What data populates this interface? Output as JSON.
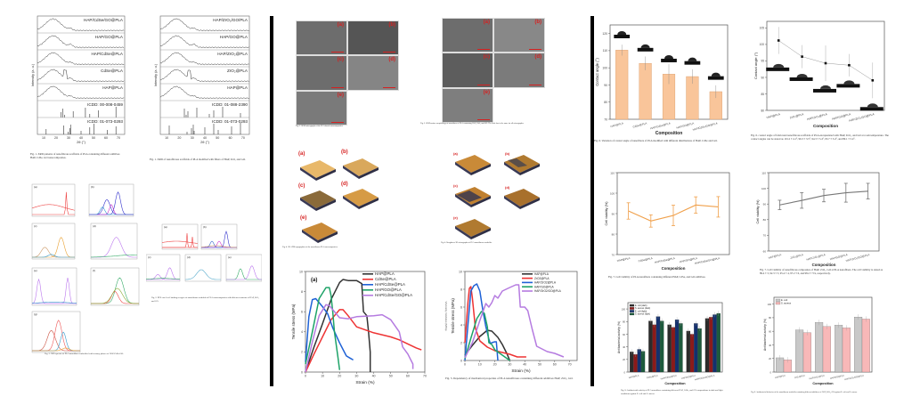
{
  "xrd": [
    {
      "traces": [
        "HAP/CdSe/GO@PLA",
        "HAP/GO@PLA",
        "HAP/CdSe@PLA",
        "CdSe@PLA",
        "HAP@PLA"
      ],
      "refs": [
        "ICDD: 00-008-0459",
        "ICDD: 01-073-0293"
      ],
      "ylabel": "Intensity (a. u.)",
      "xlabel": "2θ (°)",
      "xticks": [
        "10",
        "20",
        "30",
        "40",
        "50",
        "60",
        "70"
      ],
      "caption": "Fig. 1. XRD patterns of nanofibrous scaffolds of PLA containing different additives HAP, CdSe, GO nanocomposites."
    },
    {
      "traces": [
        "HAP/ZrO₂/GO/PLA",
        "HAP/GO@PLA",
        "HAP/ZrO₂@PLA",
        "ZrO₂@PLA",
        "HAP@PLA"
      ],
      "refs": [
        "ICDD: 01-088-2390",
        "ICDD: 01-073-0293"
      ],
      "ylabel": "Intensity (a. u.)",
      "xlabel": "2θ (°)",
      "xticks": [
        "10",
        "20",
        "30",
        "40",
        "50",
        "60",
        "70"
      ],
      "caption": "Fig. 1. XRD of nanofibrous scaffolds of PLA modified with fillers of HAP, ZrO₂ and GO."
    }
  ],
  "xps_left": {
    "panels": [
      "(a)",
      "(b)",
      "(c)",
      "(d)",
      "(e)",
      "(f)",
      "(g)"
    ],
    "caption": "Fig. 2. XPS spectra of PLA nanofibers embedded with ternary phases of HAP/CdSe/GO."
  },
  "xps_right": {
    "panels": [
      "(a)",
      "(b)",
      "(c)",
      "(d)",
      "(e)"
    ],
    "caption": "Fig. 2. XPS core level binding energies of nanofibrous scaffolds of PLA nanocomposites with different contents of HAP, ZrO₂ and GO."
  },
  "sem_left": {
    "labels": [
      "(a)",
      "(b)",
      "(c)",
      "(d)",
      "(e)"
    ],
    "caption": "Fig. 3. SEM micrographs of the PLA-based nanocomposites."
  },
  "sem_right": {
    "labels": [
      "(a)",
      "(b)",
      "(c)",
      "(d)",
      "(e)"
    ],
    "caption": "Fig. 3. SEM surface morphology of nanofibers of PLA containing HAP, ZrO₂ and GO. The scale bar is the same for all micrographs."
  },
  "afm_left": {
    "labels": [
      "(a)",
      "(b)",
      "(c)",
      "(d)",
      "(e)"
    ],
    "caption": "Fig. 4. 3D AFM topographies of the nanofibrous PLA nanocomposites."
  },
  "afm_right": {
    "labels": [
      "(a)",
      "(b)",
      "(c)",
      "(d)",
      "(e)"
    ],
    "caption": "Fig. 4. Roughness 3D micrographs of PLA nanofibrous scaffolds."
  },
  "colors": {
    "black": "#333333",
    "red": "#ee3333",
    "blue": "#1f62d6",
    "green": "#1ea368",
    "purple": "#b57be0",
    "orange_bar": "#f9c59a",
    "orange_line": "#f0a04b",
    "grey": "#777777",
    "ecoli_grey": "#c8c8c8",
    "saureus_pink": "#f8b8b8",
    "dark": "#2b2b2b",
    "darkred": "#8b1a1a",
    "navy": "#13306e",
    "darkgreen": "#1d5a3c"
  },
  "chart_data": [
    {
      "id": "tensile-cdse",
      "type": "line",
      "panel_label": "(a)",
      "xlabel": "Strain (%)",
      "ylabel": "Tensile stress (MPa)",
      "xlim": [
        0,
        70
      ],
      "ylim": [
        0,
        10
      ],
      "xticks": [
        "0",
        "10",
        "20",
        "30",
        "40",
        "50",
        "60",
        "70"
      ],
      "yticks": [
        "0",
        "2",
        "4",
        "6",
        "8",
        "10"
      ],
      "legend_position": "top-right",
      "series": [
        {
          "name": "HAP@PLA",
          "color": "#333333",
          "x": [
            0,
            5,
            10,
            15,
            20,
            22,
            25,
            30,
            33,
            34,
            36,
            37,
            38,
            38
          ],
          "y": [
            0,
            2.5,
            4.8,
            7.2,
            8.9,
            9.2,
            9.1,
            9.1,
            8.8,
            6,
            5.6,
            4,
            2,
            0
          ]
        },
        {
          "name": "CdSe@PLA",
          "color": "#ee3333",
          "x": [
            0,
            5,
            10,
            15,
            20,
            22,
            25,
            30,
            40,
            50,
            55,
            60,
            65,
            68
          ],
          "y": [
            0,
            1.8,
            3.5,
            5.2,
            6.2,
            6.2,
            5.6,
            4.5,
            3.9,
            3.5,
            3.2,
            2.8,
            2.4,
            2.2
          ]
        },
        {
          "name": "HAP/CdSe@PLA",
          "color": "#1f62d6",
          "x": [
            0,
            2,
            4,
            6,
            8,
            10,
            13,
            16,
            20,
            24,
            26,
            28
          ],
          "y": [
            1,
            5.5,
            7.2,
            7.3,
            6.9,
            6.5,
            5.8,
            4.4,
            2.9,
            1.6,
            1.4,
            1.2
          ]
        },
        {
          "name": "HAP/GO@PLA",
          "color": "#1ea368",
          "x": [
            0,
            4,
            8,
            12,
            14,
            15,
            16,
            17,
            19,
            20
          ],
          "y": [
            0.8,
            4,
            7.3,
            8.4,
            8.4,
            7.6,
            6,
            4,
            1.5,
            0.2
          ]
        },
        {
          "name": "HAP/CdSe/GO@PLA",
          "color": "#b57be0",
          "x": [
            0,
            4,
            8,
            12,
            14,
            18,
            20,
            25,
            30,
            40,
            45,
            50,
            55,
            57,
            60,
            63,
            63
          ],
          "y": [
            0,
            3,
            5.6,
            6.7,
            6.6,
            5.8,
            5.4,
            5.3,
            5.5,
            5.6,
            5.7,
            5.2,
            4,
            2.5,
            1.8,
            0.8,
            0.3
          ]
        }
      ]
    },
    {
      "id": "tensile-zro2",
      "type": "line",
      "xlabel": "Strain (%)",
      "ylabel": "Tensile stress (MPa)",
      "side_label": "Viscosity modulus (MPa)",
      "xlim": [
        0,
        75
      ],
      "ylim": [
        0,
        10
      ],
      "xticks": [
        "0",
        "10",
        "20",
        "30",
        "40",
        "50",
        "60",
        "70"
      ],
      "yticks": [
        "0",
        "2",
        "4",
        "6",
        "8",
        "10"
      ],
      "legend_position": "top-right",
      "caption": "Fig. 5. Dependency of mechanical properties of PLA nanofibrous containing different additives HAP, ZrO₂, GO.",
      "series": [
        {
          "name": "HAP@PLA",
          "color": "#333333",
          "x": [
            0,
            5,
            10,
            15,
            18,
            22,
            25,
            28,
            30
          ],
          "y": [
            0.6,
            1.7,
            2.7,
            3.4,
            3.3,
            2.6,
            1.8,
            0.8,
            0
          ]
        },
        {
          "name": "ZrO2@PLA",
          "color": "#ee3333",
          "x": [
            0,
            2,
            3,
            4,
            5,
            7,
            10,
            15,
            20,
            25,
            30,
            35,
            41
          ],
          "y": [
            2,
            6.5,
            8.1,
            8.3,
            7,
            3.6,
            2.2,
            1.5,
            1.1,
            0.9,
            0.7,
            0.4,
            0.4
          ]
        },
        {
          "name": "HAP/ZrO2@PLA",
          "color": "#1f62d6",
          "x": [
            0,
            2,
            4,
            6,
            8,
            10,
            12,
            14,
            16,
            17,
            18,
            20,
            21,
            22
          ],
          "y": [
            0,
            4,
            7.8,
            8.4,
            8.6,
            7.8,
            5.6,
            3.8,
            2.4,
            1.9,
            2,
            2.1,
            2.1,
            0
          ]
        },
        {
          "name": "HAP/GO@PLA",
          "color": "#1ea368",
          "x": [
            0,
            4,
            8,
            11,
            13,
            15,
            16,
            18,
            20,
            25,
            30
          ],
          "y": [
            0.2,
            2.5,
            4.7,
            5.5,
            5.3,
            3.8,
            2,
            1.8,
            1.2,
            0.6,
            0
          ]
        },
        {
          "name": "HAP/ZrO2/GO@PLA",
          "color": "#b57be0",
          "x": [
            0,
            5,
            10,
            14,
            16,
            18,
            20,
            22,
            25,
            30,
            34,
            36,
            37,
            40,
            42,
            45,
            48,
            55,
            60,
            66
          ],
          "y": [
            0.3,
            2,
            4.5,
            6.4,
            6,
            6.5,
            7.3,
            7,
            7.8,
            8.2,
            8.5,
            8.5,
            6,
            6,
            5.6,
            3.5,
            1.6,
            1,
            0.8,
            0.4
          ]
        }
      ]
    },
    {
      "id": "contact-angle-cdse",
      "type": "bar",
      "xlabel": "Composition",
      "ylabel": "Contact angle (°)",
      "ylim": [
        70,
        125
      ],
      "yticks": [
        "70",
        "80",
        "90",
        "100",
        "110",
        "120"
      ],
      "categories": [
        "HAP@PLA",
        "CdSe@PLA",
        "HAP/CdSe@PLA",
        "HAP/GO@PLA",
        "HAP/CdSe/GO@PLA"
      ],
      "values": [
        110.3,
        102.6,
        96.3,
        94.9,
        86.1
      ],
      "errors": [
        3.2,
        4.0,
        5.8,
        4.2,
        3.7
      ],
      "caption": "Fig. 6. Variation of contact angle of nanofibers of PLA modified with different distributions of HAP, CdSe and GO."
    },
    {
      "id": "contact-angle-zro2",
      "type": "line",
      "xlabel": "Composition",
      "ylabel": "Contact angle (°)",
      "ylim": [
        80,
        107
      ],
      "yticks": [
        "80",
        "85",
        "90",
        "95",
        "100",
        "105"
      ],
      "categories": [
        "HAP@PLA",
        "ZrO₂@PLA",
        "HAP/ZrO₂@PLA",
        "HAP/GO@PLA",
        "HAP/ZrO₂/GO@PLA"
      ],
      "values": [
        101.2,
        96.3,
        94.3,
        93.7,
        89.1
      ],
      "errors": [
        4.1,
        3.5,
        5.4,
        3.4,
        5.4
      ],
      "caption": "Fig. 6. contact angle of fabricated nanofibrous scaffolds of PLA encapsulated with HAP, ZrO₂, and GO at room temperature. The contact angles can be stated as 101.2 ± 4.1°, 96.3 ± 3.5°, 94.3 ± 5.4°, 93.7 ± 3.4°, and 89.1 ± 5.4°."
    },
    {
      "id": "cell-viability-cdse",
      "type": "line",
      "xlabel": "Composition",
      "ylabel": "Cell viability (%)",
      "ylim": [
        70,
        110
      ],
      "yticks": [
        "70",
        "80",
        "90",
        "100",
        "110"
      ],
      "categories": [
        "HAP@PLA",
        "CdSe@PLA",
        "HAP/CdSe@PLA",
        "HAP/GO@PLA",
        "HAP/CdSe/GO@PLA"
      ],
      "values": [
        91.3,
        86.4,
        89.1,
        94.2,
        93.3
      ],
      "errors": [
        4.0,
        3.0,
        5.0,
        4.0,
        5.0
      ],
      "caption": "Fig. 7. Cell viability of PLA nanofibers containing different HAP, CdSe, and GO additives."
    },
    {
      "id": "cell-viability-zro2",
      "type": "line",
      "xlabel": "Composition",
      "ylabel": "Cell viability (%)",
      "ylim": [
        60,
        110
      ],
      "yticks": [
        "60",
        "70",
        "80",
        "90",
        "100",
        "110"
      ],
      "categories": [
        "HAP@PLA",
        "ZrO₂@PLA",
        "HAP/ZrO₂@PLA",
        "HAP/GO@PLA",
        "HAP/ZrO₂/GO@PLA"
      ],
      "values": [
        89.4,
        92.3,
        95.4,
        97.2,
        98.2
      ],
      "errors": [
        3,
        5,
        4,
        6,
        5
      ],
      "caption": "Fig. 7. Cell viability of nanofibrous composites of HAP, ZrO₂, GO at PLA nanofibers. The cell viability is stated as 89.4 ± 3, 92.3 ± 5, 95.4 ± 4, 97.2 ± 6, and 98.2 ± 5%, respectively."
    },
    {
      "id": "antibacterial-cdse",
      "type": "bar",
      "xlabel": "Composition",
      "ylabel": "Antibacterial activity (%)",
      "ylim": [
        0,
        110
      ],
      "yticks": [
        "0",
        "20",
        "40",
        "60",
        "80",
        "100"
      ],
      "categories": [
        "HAP@PLA",
        "CdSe@PLA",
        "HAP/CdSe@PLA",
        "HAP/GO@PLA",
        "HAP/CdSe/GO@PLA"
      ],
      "legend_position": "top-left",
      "series": [
        {
          "name": "E. coli (dark)",
          "color": "#2b2b2b",
          "values": [
            32,
            81,
            75,
            65,
            85
          ]
        },
        {
          "name": "S. aureus (dark)",
          "color": "#8b1a1a",
          "values": [
            28,
            75,
            71,
            60,
            87
          ]
        },
        {
          "name": "E. coli (light)",
          "color": "#13306e",
          "values": [
            36,
            88,
            83,
            77,
            91
          ]
        },
        {
          "name": "S. aureus (light)",
          "color": "#1d5a3c",
          "values": [
            33,
            81,
            77,
            69,
            93
          ]
        }
      ],
      "caption": "Fig. 8. Antibacterial activity of PLA nanofibers containing different HAP, CdSe, and GO compositions in dark and light conditions against E. coli and S. aureus."
    },
    {
      "id": "antibacterial-zro2",
      "type": "bar",
      "xlabel": "Composition",
      "ylabel": "Antibacterial activity (%)",
      "ylim": [
        0,
        110
      ],
      "yticks": [
        "0",
        "20",
        "40",
        "60",
        "80",
        "100"
      ],
      "categories": [
        "HAP@PLA",
        "ZrO₂@PLA",
        "HAP/ZrO₂@PLA",
        "HAP/GO@PLA",
        "HAP/ZrO₂/GO@PLA"
      ],
      "legend_position": "top-left",
      "series": [
        {
          "name": "E. coli",
          "color": "#c8c8c8",
          "values": [
            21,
            62,
            73,
            69,
            81
          ]
        },
        {
          "name": "S. aureus",
          "color": "#f8b8b8",
          "values": [
            18,
            58,
            67,
            65,
            78
          ]
        }
      ],
      "caption": "Fig. 8. Antibacterial behavior of the nanofibrous scaffolds containing different additives of HAP, ZrO₂, GO against E. coli and S. aureus."
    }
  ]
}
